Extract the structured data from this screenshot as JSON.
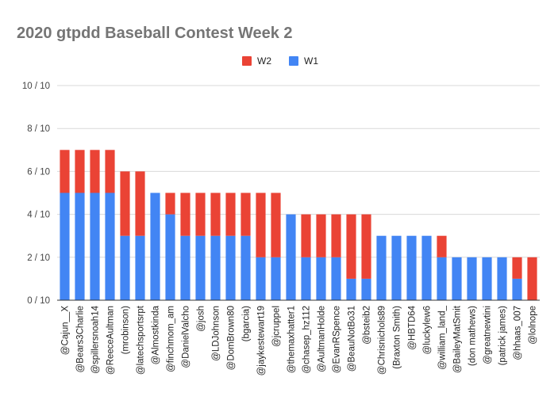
{
  "chart_data": {
    "type": "bar",
    "stacked": true,
    "title": "2020 gtpdd Baseball Contest Week 2",
    "xlabel": "",
    "ylabel": "",
    "ylim": [
      0,
      10
    ],
    "yticks": [
      0,
      2,
      4,
      6,
      8,
      10
    ],
    "ytick_labels": [
      "0 / 10",
      "2 / 10",
      "4 / 10",
      "6 / 10",
      "8 / 10",
      "10 / 10"
    ],
    "grid": true,
    "legend_position": "top",
    "categories": [
      "@Cajun__X",
      "@Bears3Charlie",
      "@spillersnoah14",
      "@ReeceAultman",
      "(mrobinson)",
      "@latechsportsrpt",
      "@Almostkinda",
      "@finchmom_am",
      "@DanielValcho",
      "@josh",
      "@LDJohnson",
      "@DomBrown80",
      "(bgarcia)",
      "@jaykestewart19",
      "@jcruppel",
      "@themaxhatter1",
      "@chasep_hz112",
      "@AultmanHolde",
      "@EvanRSpence",
      "@BeauNotBo31",
      "@bsteib2",
      "@Chrisnichols89",
      "(Braxton Smith)",
      "@HBTD64",
      "@luckylew6",
      "@william_land_",
      "@BaileyMatSmit",
      "(don mathews)",
      "@greatnewtini",
      "(patrick james)",
      "@hhaas_007",
      "@lolnope"
    ],
    "legend_order": [
      "W2",
      "W1"
    ],
    "series": [
      {
        "name": "W1",
        "color": "#4285f4",
        "values": [
          5,
          5,
          5,
          5,
          3,
          3,
          5,
          4,
          3,
          3,
          3,
          3,
          3,
          2,
          2,
          4,
          2,
          2,
          2,
          1,
          1,
          3,
          3,
          3,
          3,
          2,
          2,
          2,
          2,
          2,
          1,
          0
        ]
      },
      {
        "name": "W2",
        "color": "#ea4335",
        "values": [
          2,
          2,
          2,
          2,
          3,
          3,
          0,
          1,
          2,
          2,
          2,
          2,
          2,
          3,
          3,
          0,
          2,
          2,
          2,
          3,
          3,
          0,
          0,
          0,
          0,
          1,
          0,
          0,
          0,
          0,
          1,
          2
        ]
      }
    ]
  }
}
